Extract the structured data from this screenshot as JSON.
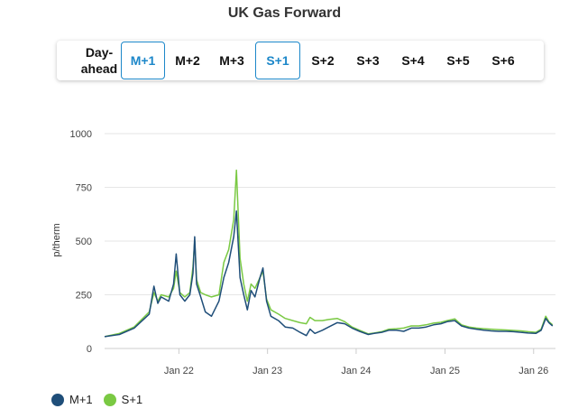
{
  "title": "UK Gas Forward",
  "tabs": [
    {
      "label_line1": "Day-",
      "label_line2": "ahead",
      "active": false
    },
    {
      "label": "M+1",
      "active": true
    },
    {
      "label": "M+2",
      "active": false
    },
    {
      "label": "M+3",
      "active": false
    },
    {
      "label": "S+1",
      "active": true
    },
    {
      "label": "S+2",
      "active": false
    },
    {
      "label": "S+3",
      "active": false
    },
    {
      "label": "S+4",
      "active": false
    },
    {
      "label": "S+5",
      "active": false
    },
    {
      "label": "S+6",
      "active": false
    }
  ],
  "colors": {
    "m1": "#1f4e79",
    "s1": "#7ac943",
    "grid": "#e6e6e6",
    "axis": "#cccccc",
    "active_tab": "#1c87c9"
  },
  "chart_data": {
    "type": "line",
    "title": "UK Gas Forward",
    "xlabel": "",
    "ylabel": "p/therm",
    "ylim": [
      0,
      1000
    ],
    "yticks": [
      0,
      250,
      500,
      750,
      1000
    ],
    "xlim": [
      "2021-03-01",
      "2026-04-01"
    ],
    "xticks": [
      {
        "date": "2022-01-01",
        "label": "Jan 22"
      },
      {
        "date": "2023-01-01",
        "label": "Jan 23"
      },
      {
        "date": "2024-01-01",
        "label": "Jan 24"
      },
      {
        "date": "2025-01-01",
        "label": "Jan 25"
      },
      {
        "date": "2026-01-01",
        "label": "Jan 26"
      }
    ],
    "grid": true,
    "legend_position": "bottom-left",
    "series": [
      {
        "name": "M+1",
        "color": "#1f4e79",
        "points": [
          [
            "2021-03-01",
            55
          ],
          [
            "2021-05-01",
            65
          ],
          [
            "2021-07-01",
            95
          ],
          [
            "2021-09-01",
            160
          ],
          [
            "2021-09-20",
            290
          ],
          [
            "2021-10-06",
            210
          ],
          [
            "2021-10-20",
            240
          ],
          [
            "2021-11-20",
            220
          ],
          [
            "2021-12-10",
            300
          ],
          [
            "2021-12-21",
            440
          ],
          [
            "2022-01-05",
            250
          ],
          [
            "2022-01-25",
            220
          ],
          [
            "2022-02-15",
            250
          ],
          [
            "2022-02-28",
            350
          ],
          [
            "2022-03-07",
            520
          ],
          [
            "2022-03-15",
            300
          ],
          [
            "2022-04-01",
            240
          ],
          [
            "2022-04-20",
            170
          ],
          [
            "2022-05-15",
            150
          ],
          [
            "2022-06-15",
            220
          ],
          [
            "2022-07-05",
            330
          ],
          [
            "2022-07-25",
            400
          ],
          [
            "2022-08-15",
            520
          ],
          [
            "2022-08-26",
            640
          ],
          [
            "2022-09-10",
            330
          ],
          [
            "2022-09-25",
            250
          ],
          [
            "2022-10-10",
            180
          ],
          [
            "2022-10-25",
            270
          ],
          [
            "2022-11-10",
            240
          ],
          [
            "2022-12-01",
            330
          ],
          [
            "2022-12-13",
            375
          ],
          [
            "2022-12-28",
            220
          ],
          [
            "2023-01-15",
            150
          ],
          [
            "2023-02-15",
            130
          ],
          [
            "2023-03-15",
            100
          ],
          [
            "2023-04-15",
            95
          ],
          [
            "2023-05-15",
            75
          ],
          [
            "2023-06-10",
            60
          ],
          [
            "2023-06-25",
            90
          ],
          [
            "2023-07-15",
            70
          ],
          [
            "2023-08-15",
            85
          ],
          [
            "2023-09-10",
            100
          ],
          [
            "2023-10-15",
            120
          ],
          [
            "2023-11-15",
            115
          ],
          [
            "2023-12-15",
            95
          ],
          [
            "2024-01-15",
            80
          ],
          [
            "2024-02-20",
            65
          ],
          [
            "2024-03-15",
            70
          ],
          [
            "2024-04-15",
            75
          ],
          [
            "2024-05-15",
            85
          ],
          [
            "2024-06-15",
            85
          ],
          [
            "2024-07-15",
            80
          ],
          [
            "2024-08-15",
            95
          ],
          [
            "2024-09-15",
            95
          ],
          [
            "2024-10-15",
            100
          ],
          [
            "2024-11-15",
            110
          ],
          [
            "2024-12-15",
            115
          ],
          [
            "2025-01-10",
            125
          ],
          [
            "2025-02-10",
            130
          ],
          [
            "2025-03-10",
            105
          ],
          [
            "2025-04-10",
            95
          ],
          [
            "2025-05-10",
            90
          ],
          [
            "2025-06-10",
            85
          ],
          [
            "2025-07-10",
            82
          ],
          [
            "2025-08-10",
            80
          ],
          [
            "2025-09-10",
            80
          ],
          [
            "2025-10-10",
            78
          ],
          [
            "2025-11-10",
            75
          ],
          [
            "2025-12-10",
            72
          ],
          [
            "2026-01-10",
            70
          ],
          [
            "2026-02-01",
            85
          ],
          [
            "2026-02-20",
            140
          ],
          [
            "2026-03-05",
            120
          ],
          [
            "2026-03-20",
            105
          ]
        ]
      },
      {
        "name": "S+1",
        "color": "#7ac943",
        "points": [
          [
            "2021-03-01",
            55
          ],
          [
            "2021-05-01",
            70
          ],
          [
            "2021-07-01",
            100
          ],
          [
            "2021-09-01",
            170
          ],
          [
            "2021-09-20",
            260
          ],
          [
            "2021-10-06",
            220
          ],
          [
            "2021-10-20",
            250
          ],
          [
            "2021-11-20",
            240
          ],
          [
            "2021-12-10",
            280
          ],
          [
            "2021-12-21",
            360
          ],
          [
            "2022-01-05",
            260
          ],
          [
            "2022-01-25",
            240
          ],
          [
            "2022-02-15",
            260
          ],
          [
            "2022-02-28",
            380
          ],
          [
            "2022-03-07",
            500
          ],
          [
            "2022-03-15",
            320
          ],
          [
            "2022-04-01",
            260
          ],
          [
            "2022-04-20",
            250
          ],
          [
            "2022-05-15",
            240
          ],
          [
            "2022-06-15",
            250
          ],
          [
            "2022-07-05",
            400
          ],
          [
            "2022-07-25",
            460
          ],
          [
            "2022-08-15",
            600
          ],
          [
            "2022-08-26",
            830
          ],
          [
            "2022-09-10",
            420
          ],
          [
            "2022-09-25",
            300
          ],
          [
            "2022-10-10",
            220
          ],
          [
            "2022-10-25",
            300
          ],
          [
            "2022-11-10",
            280
          ],
          [
            "2022-12-01",
            330
          ],
          [
            "2022-12-13",
            360
          ],
          [
            "2022-12-28",
            230
          ],
          [
            "2023-01-15",
            180
          ],
          [
            "2023-02-15",
            160
          ],
          [
            "2023-03-15",
            140
          ],
          [
            "2023-04-15",
            130
          ],
          [
            "2023-05-15",
            120
          ],
          [
            "2023-06-10",
            115
          ],
          [
            "2023-06-25",
            145
          ],
          [
            "2023-07-15",
            130
          ],
          [
            "2023-08-15",
            130
          ],
          [
            "2023-09-10",
            135
          ],
          [
            "2023-10-15",
            140
          ],
          [
            "2023-11-15",
            125
          ],
          [
            "2023-12-15",
            100
          ],
          [
            "2024-01-15",
            85
          ],
          [
            "2024-02-20",
            68
          ],
          [
            "2024-03-15",
            72
          ],
          [
            "2024-04-15",
            78
          ],
          [
            "2024-05-15",
            90
          ],
          [
            "2024-06-15",
            92
          ],
          [
            "2024-07-15",
            95
          ],
          [
            "2024-08-15",
            105
          ],
          [
            "2024-09-15",
            105
          ],
          [
            "2024-10-15",
            110
          ],
          [
            "2024-11-15",
            118
          ],
          [
            "2024-12-15",
            122
          ],
          [
            "2025-01-10",
            130
          ],
          [
            "2025-02-10",
            138
          ],
          [
            "2025-03-10",
            110
          ],
          [
            "2025-04-10",
            100
          ],
          [
            "2025-05-10",
            95
          ],
          [
            "2025-06-10",
            92
          ],
          [
            "2025-07-10",
            90
          ],
          [
            "2025-08-10",
            88
          ],
          [
            "2025-09-10",
            86
          ],
          [
            "2025-10-10",
            84
          ],
          [
            "2025-11-10",
            82
          ],
          [
            "2025-12-10",
            78
          ],
          [
            "2026-01-10",
            75
          ],
          [
            "2026-02-01",
            90
          ],
          [
            "2026-02-20",
            150
          ],
          [
            "2026-03-05",
            125
          ],
          [
            "2026-03-20",
            110
          ]
        ]
      }
    ]
  }
}
